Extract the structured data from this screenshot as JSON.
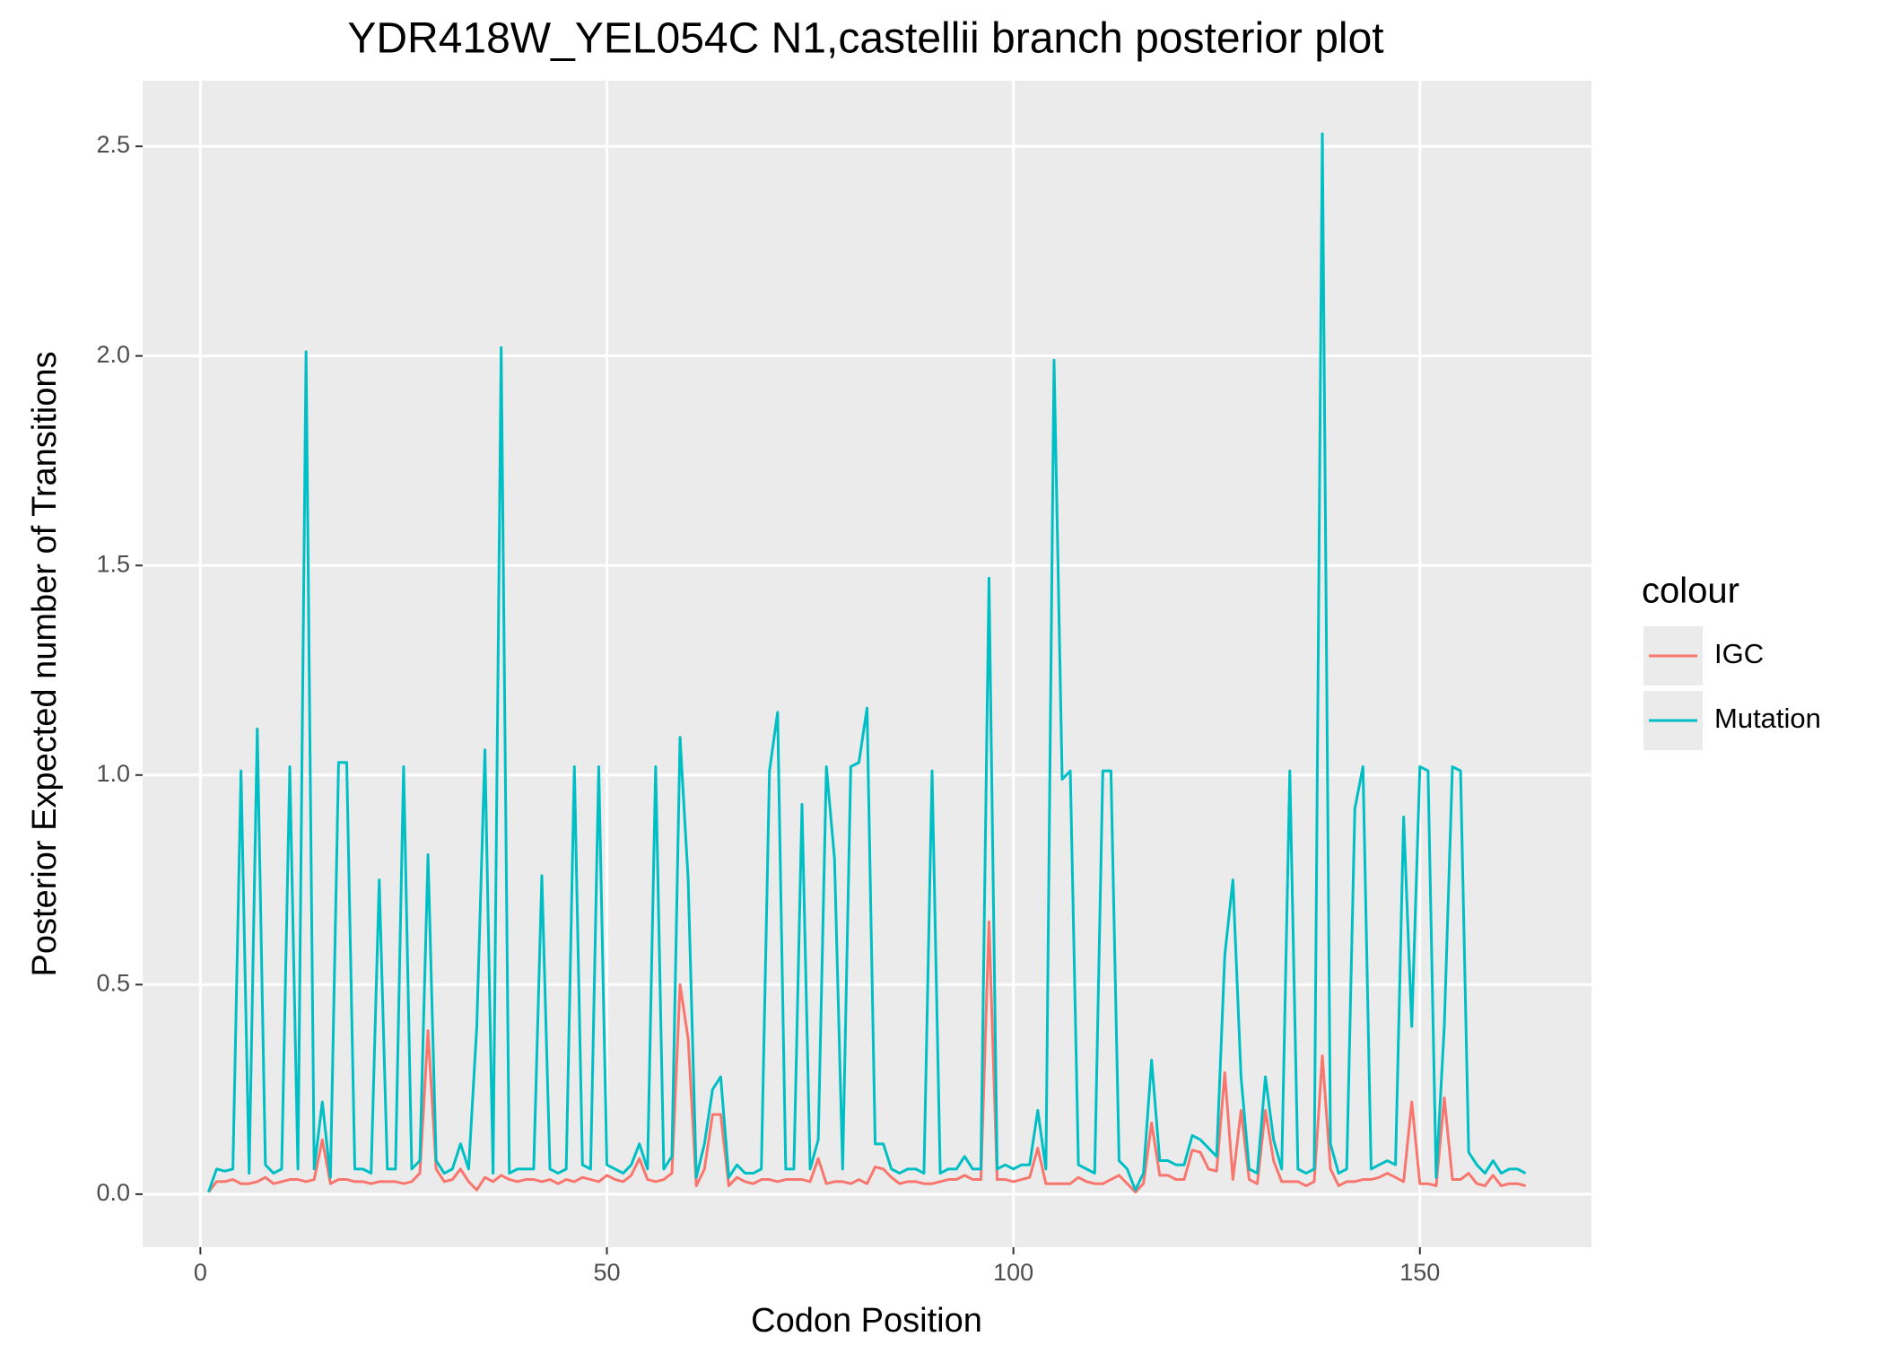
{
  "chart_data": {
    "type": "line",
    "title": "YDR418W_YEL054C N1,castellii branch posterior plot",
    "x_label": "Codon Position",
    "y_label": "Posterior Expected number of Transitions",
    "legend_title": "colour",
    "legend_position": "right",
    "grid": true,
    "xlim": [
      -7.1,
      171.1
    ],
    "ylim": [
      -0.1265,
      2.6565
    ],
    "xticks": [
      0,
      50,
      100,
      150
    ],
    "yticks": [
      {
        "value": 0,
        "label": "0.0"
      },
      0.5,
      {
        "value": 1,
        "label": "1.0"
      },
      1.5,
      {
        "value": 2,
        "label": "2.0"
      },
      2.5
    ],
    "x": [
      1,
      2,
      3,
      4,
      5,
      6,
      7,
      8,
      9,
      10,
      11,
      12,
      13,
      14,
      15,
      16,
      17,
      18,
      19,
      20,
      21,
      22,
      23,
      24,
      25,
      26,
      27,
      28,
      29,
      30,
      31,
      32,
      33,
      34,
      35,
      36,
      37,
      38,
      39,
      40,
      41,
      42,
      43,
      44,
      45,
      46,
      47,
      48,
      49,
      50,
      51,
      52,
      53,
      54,
      55,
      56,
      57,
      58,
      59,
      60,
      61,
      62,
      63,
      64,
      65,
      66,
      67,
      68,
      69,
      70,
      71,
      72,
      73,
      74,
      75,
      76,
      77,
      78,
      79,
      80,
      81,
      82,
      83,
      84,
      85,
      86,
      87,
      88,
      89,
      90,
      91,
      92,
      93,
      94,
      95,
      96,
      97,
      98,
      99,
      100,
      101,
      102,
      103,
      104,
      105,
      106,
      107,
      108,
      109,
      110,
      111,
      112,
      113,
      114,
      115,
      116,
      117,
      118,
      119,
      120,
      121,
      122,
      123,
      124,
      125,
      126,
      127,
      128,
      129,
      130,
      131,
      132,
      133,
      134,
      135,
      136,
      137,
      138,
      139,
      140,
      141,
      142,
      143,
      144,
      145,
      146,
      147,
      148,
      149,
      150,
      151,
      152,
      153,
      154,
      155,
      156,
      157,
      158,
      159,
      160,
      161,
      162,
      163
    ],
    "series": [
      {
        "name": "IGC",
        "color": "#F8766D",
        "values": [
          0.005,
          0.03,
          0.03,
          0.035,
          0.025,
          0.025,
          0.03,
          0.04,
          0.025,
          0.03,
          0.035,
          0.035,
          0.03,
          0.035,
          0.13,
          0.025,
          0.035,
          0.035,
          0.03,
          0.03,
          0.025,
          0.03,
          0.03,
          0.03,
          0.025,
          0.03,
          0.05,
          0.39,
          0.06,
          0.03,
          0.035,
          0.06,
          0.03,
          0.01,
          0.04,
          0.03,
          0.045,
          0.035,
          0.03,
          0.035,
          0.035,
          0.03,
          0.035,
          0.025,
          0.035,
          0.03,
          0.04,
          0.035,
          0.03,
          0.045,
          0.035,
          0.03,
          0.045,
          0.085,
          0.035,
          0.03,
          0.035,
          0.05,
          0.5,
          0.37,
          0.02,
          0.06,
          0.19,
          0.19,
          0.02,
          0.04,
          0.03,
          0.025,
          0.035,
          0.035,
          0.03,
          0.035,
          0.035,
          0.035,
          0.03,
          0.085,
          0.025,
          0.03,
          0.03,
          0.025,
          0.035,
          0.025,
          0.065,
          0.06,
          0.04,
          0.025,
          0.03,
          0.03,
          0.025,
          0.025,
          0.03,
          0.035,
          0.035,
          0.045,
          0.035,
          0.035,
          0.65,
          0.035,
          0.035,
          0.03,
          0.035,
          0.04,
          0.11,
          0.025,
          0.025,
          0.025,
          0.025,
          0.04,
          0.03,
          0.025,
          0.025,
          0.035,
          0.045,
          0.025,
          0.005,
          0.025,
          0.17,
          0.045,
          0.045,
          0.035,
          0.035,
          0.105,
          0.1,
          0.06,
          0.055,
          0.29,
          0.035,
          0.2,
          0.035,
          0.025,
          0.2,
          0.08,
          0.03,
          0.03,
          0.03,
          0.02,
          0.03,
          0.33,
          0.06,
          0.02,
          0.03,
          0.03,
          0.035,
          0.035,
          0.04,
          0.05,
          0.04,
          0.03,
          0.22,
          0.025,
          0.025,
          0.02,
          0.23,
          0.035,
          0.035,
          0.05,
          0.025,
          0.02,
          0.045,
          0.02,
          0.025,
          0.025,
          0.02
        ]
      },
      {
        "name": "Mutation",
        "color": "#00BFC4",
        "values": [
          0.005,
          0.06,
          0.055,
          0.06,
          1.01,
          0.05,
          1.11,
          0.07,
          0.05,
          0.06,
          1.02,
          0.06,
          2.01,
          0.06,
          0.22,
          0.04,
          1.03,
          1.03,
          0.06,
          0.06,
          0.05,
          0.75,
          0.06,
          0.06,
          1.02,
          0.06,
          0.08,
          0.81,
          0.08,
          0.05,
          0.06,
          0.12,
          0.06,
          0.4,
          1.06,
          0.05,
          2.02,
          0.05,
          0.06,
          0.06,
          0.06,
          0.76,
          0.06,
          0.05,
          0.06,
          1.02,
          0.07,
          0.06,
          1.02,
          0.07,
          0.06,
          0.05,
          0.07,
          0.12,
          0.06,
          1.02,
          0.06,
          0.09,
          1.09,
          0.75,
          0.04,
          0.12,
          0.25,
          0.28,
          0.04,
          0.07,
          0.05,
          0.05,
          0.06,
          1.01,
          1.15,
          0.06,
          0.06,
          0.93,
          0.06,
          0.13,
          1.02,
          0.8,
          0.06,
          1.02,
          1.03,
          1.16,
          0.12,
          0.12,
          0.06,
          0.05,
          0.06,
          0.06,
          0.05,
          1.01,
          0.05,
          0.06,
          0.06,
          0.09,
          0.06,
          0.06,
          1.47,
          0.06,
          0.07,
          0.06,
          0.07,
          0.07,
          0.2,
          0.06,
          1.99,
          0.99,
          1.01,
          0.07,
          0.06,
          0.05,
          1.01,
          1.01,
          0.08,
          0.06,
          0.01,
          0.05,
          0.32,
          0.08,
          0.08,
          0.07,
          0.07,
          0.14,
          0.13,
          0.11,
          0.09,
          0.57,
          0.75,
          0.28,
          0.06,
          0.05,
          0.28,
          0.13,
          0.06,
          1.01,
          0.06,
          0.05,
          0.06,
          2.53,
          0.12,
          0.05,
          0.06,
          0.92,
          1.02,
          0.06,
          0.07,
          0.08,
          0.07,
          0.9,
          0.4,
          1.02,
          1.01,
          0.04,
          0.4,
          1.02,
          1.01,
          0.1,
          0.07,
          0.05,
          0.08,
          0.05,
          0.06,
          0.06,
          0.05
        ]
      }
    ]
  }
}
